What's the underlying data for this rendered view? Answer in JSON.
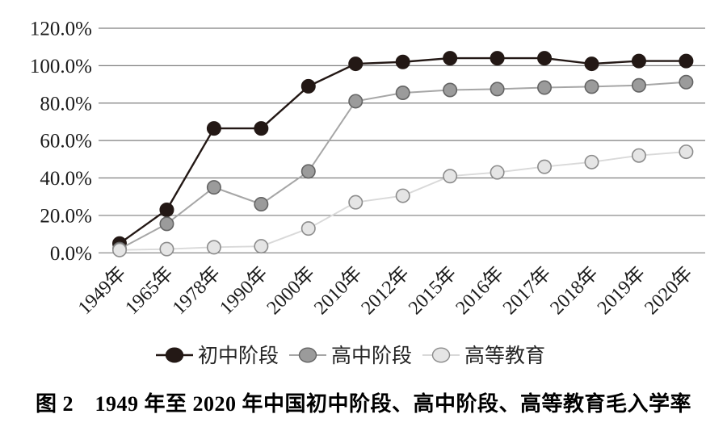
{
  "figure": {
    "caption": "图 2　1949 年至 2020 年中国初中阶段、高中阶段、高等教育毛入学率"
  },
  "chart_data": {
    "type": "line",
    "title": "",
    "xlabel": "",
    "ylabel": "",
    "grid": true,
    "legend_position": "bottom",
    "ylim": [
      0,
      120
    ],
    "y_axis": {
      "min": 0,
      "max": 120,
      "step": 20,
      "tick_labels": [
        "0.0%",
        "20.0%",
        "40.0%",
        "60.0%",
        "80.0%",
        "100.0%",
        "120.0%"
      ]
    },
    "categories": [
      "1949年",
      "1965年",
      "1978年",
      "1990年",
      "2000年",
      "2010年",
      "2012年",
      "2015年",
      "2016年",
      "2017年",
      "2018年",
      "2019年",
      "2020年"
    ],
    "series": [
      {
        "name": "初中阶段",
        "values": [
          5.0,
          23.0,
          66.5,
          66.5,
          89.0,
          101.0,
          102.0,
          104.0,
          104.0,
          104.0,
          101.0,
          102.5,
          102.5
        ],
        "line_color": "#231815",
        "marker_fill": "#231815",
        "marker_stroke": "#231815"
      },
      {
        "name": "高中阶段",
        "values": [
          2.0,
          15.5,
          35.0,
          26.0,
          43.5,
          81.0,
          85.5,
          87.0,
          87.5,
          88.3,
          88.8,
          89.5,
          91.2
        ],
        "line_color": "#a6a6a6",
        "marker_fill": "#9b9b9b",
        "marker_stroke": "#646464"
      },
      {
        "name": "高等教育",
        "values": [
          1.5,
          2.0,
          3.0,
          3.5,
          13.0,
          27.0,
          30.5,
          41.0,
          43.0,
          46.0,
          48.5,
          52.0,
          54.0
        ],
        "line_color": "#d9d9d9",
        "marker_fill": "#e5e5e5",
        "marker_stroke": "#8c8c8c"
      }
    ],
    "colors": {
      "gridline": "#7f7f7f",
      "axis_text": "#1a1a1a",
      "legend_text": "#262626"
    }
  }
}
